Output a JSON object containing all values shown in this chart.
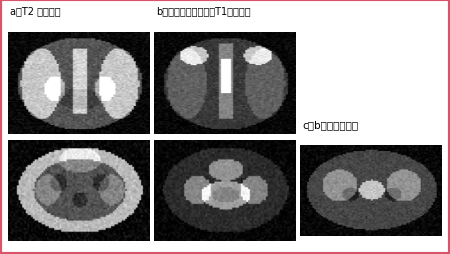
{
  "label_a": "a：T2 強調画像",
  "label_b": "b：脂肪抑制併用造影T1強調画像",
  "label_c": "c：b下段の拡大像",
  "border_color": "#d9546a",
  "bg_color": "#ffffff",
  "label_fontsize": 7.0,
  "label_c_fontsize": 7.5,
  "border_lw": 3.0
}
